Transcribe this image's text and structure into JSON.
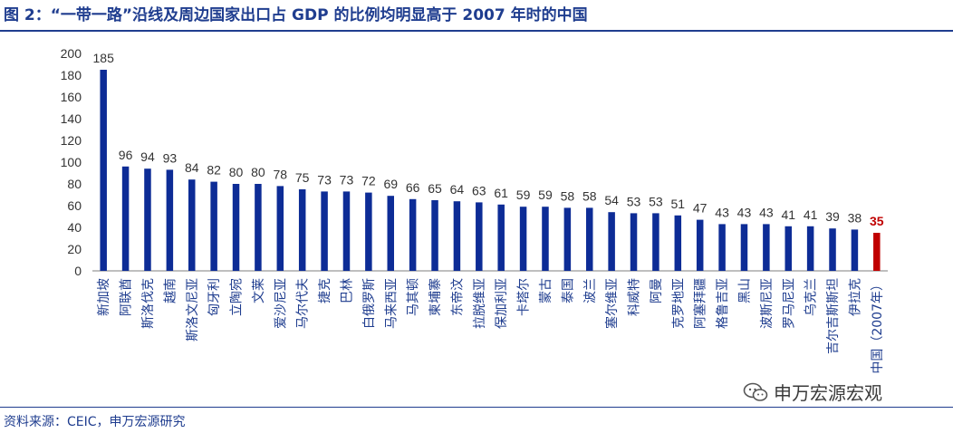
{
  "title": "图 2：“一带一路”沿线及周边国家出口占 GDP 的比例均明显高于 2007 年时的中国",
  "source": "资料来源：CEIC，申万宏源研究",
  "watermark": "申万宏源宏观",
  "colors": {
    "bar": "#0d2c96",
    "highlight": "#c00000",
    "text": "#333333",
    "brand": "#1f3d8f"
  },
  "chart_data": {
    "type": "bar",
    "title": "",
    "xlabel": "",
    "ylabel": "",
    "ylim": [
      0,
      200
    ],
    "yticks": [
      0,
      20,
      40,
      60,
      80,
      100,
      120,
      140,
      160,
      180,
      200
    ],
    "grid": false,
    "categories": [
      "新加坡",
      "阿联酋",
      "斯洛伐克",
      "越南",
      "斯洛文尼亚",
      "匈牙利",
      "立陶宛",
      "文莱",
      "爱沙尼亚",
      "马尔代夫",
      "捷克",
      "巴林",
      "白俄罗斯",
      "马来西亚",
      "马其顿",
      "柬埔寨",
      "东帝汶",
      "拉脱维亚",
      "保加利亚",
      "卡塔尔",
      "蒙古",
      "泰国",
      "波兰",
      "塞尔维亚",
      "科威特",
      "阿曼",
      "克罗地亚",
      "阿塞拜疆",
      "格鲁吉亚",
      "黑山",
      "波斯尼亚",
      "罗马尼亚",
      "乌克兰",
      "吉尔吉斯斯坦",
      "伊拉克",
      "中国（2007年）"
    ],
    "values": [
      185,
      96,
      94,
      93,
      84,
      82,
      80,
      80,
      78,
      75,
      73,
      73,
      72,
      69,
      66,
      65,
      64,
      63,
      61,
      59,
      59,
      58,
      58,
      54,
      53,
      53,
      51,
      47,
      43,
      43,
      43,
      41,
      41,
      39,
      38,
      35
    ],
    "highlight_index": 35
  }
}
